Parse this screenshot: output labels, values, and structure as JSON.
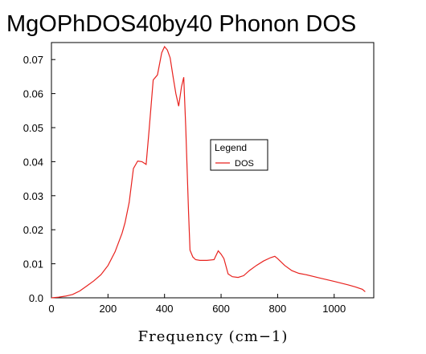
{
  "chart_data": {
    "type": "line",
    "title": "MgOPhDOS40by40 Phonon DOS",
    "xlabel": "Frequency (cm−1)",
    "ylabel": "",
    "xlim": [
      0,
      1140
    ],
    "ylim": [
      0,
      0.075
    ],
    "xticks": [
      0,
      200,
      400,
      600,
      800,
      1000
    ],
    "xtick_labels": [
      "0",
      "200",
      "400",
      "600",
      "800",
      "1000"
    ],
    "yticks": [
      0.0,
      0.01,
      0.02,
      0.03,
      0.04,
      0.05,
      0.06,
      0.07
    ],
    "ytick_labels": [
      "0.0",
      "0.01",
      "0.02",
      "0.03",
      "0.04",
      "0.05",
      "0.06",
      "0.07"
    ],
    "grid": false,
    "legend": {
      "title": "Legend",
      "placement": "center-right"
    },
    "series": [
      {
        "name": "DOS",
        "color": "#e8221e",
        "x": [
          0,
          25,
          50,
          75,
          100,
          125,
          150,
          175,
          200,
          225,
          250,
          260,
          275,
          290,
          305,
          320,
          335,
          345,
          360,
          375,
          390,
          400,
          410,
          420,
          430,
          440,
          450,
          460,
          468,
          475,
          485,
          490,
          500,
          510,
          525,
          550,
          575,
          590,
          600,
          610,
          625,
          640,
          660,
          680,
          700,
          725,
          750,
          775,
          790,
          800,
          825,
          850,
          875,
          900,
          950,
          1000,
          1050,
          1075,
          1100,
          1110
        ],
        "values": [
          0.0,
          0.0002,
          0.0005,
          0.001,
          0.002,
          0.0035,
          0.005,
          0.0068,
          0.0095,
          0.0135,
          0.019,
          0.022,
          0.028,
          0.038,
          0.0402,
          0.04,
          0.0392,
          0.049,
          0.064,
          0.0655,
          0.072,
          0.0738,
          0.0728,
          0.0705,
          0.065,
          0.06,
          0.0563,
          0.062,
          0.0648,
          0.05,
          0.025,
          0.014,
          0.012,
          0.0112,
          0.011,
          0.011,
          0.0112,
          0.0138,
          0.0128,
          0.0115,
          0.007,
          0.0062,
          0.006,
          0.0065,
          0.008,
          0.0095,
          0.0108,
          0.0118,
          0.0122,
          0.0115,
          0.0095,
          0.008,
          0.0072,
          0.0068,
          0.0058,
          0.0048,
          0.0038,
          0.0032,
          0.0025,
          0.0018
        ]
      }
    ]
  }
}
